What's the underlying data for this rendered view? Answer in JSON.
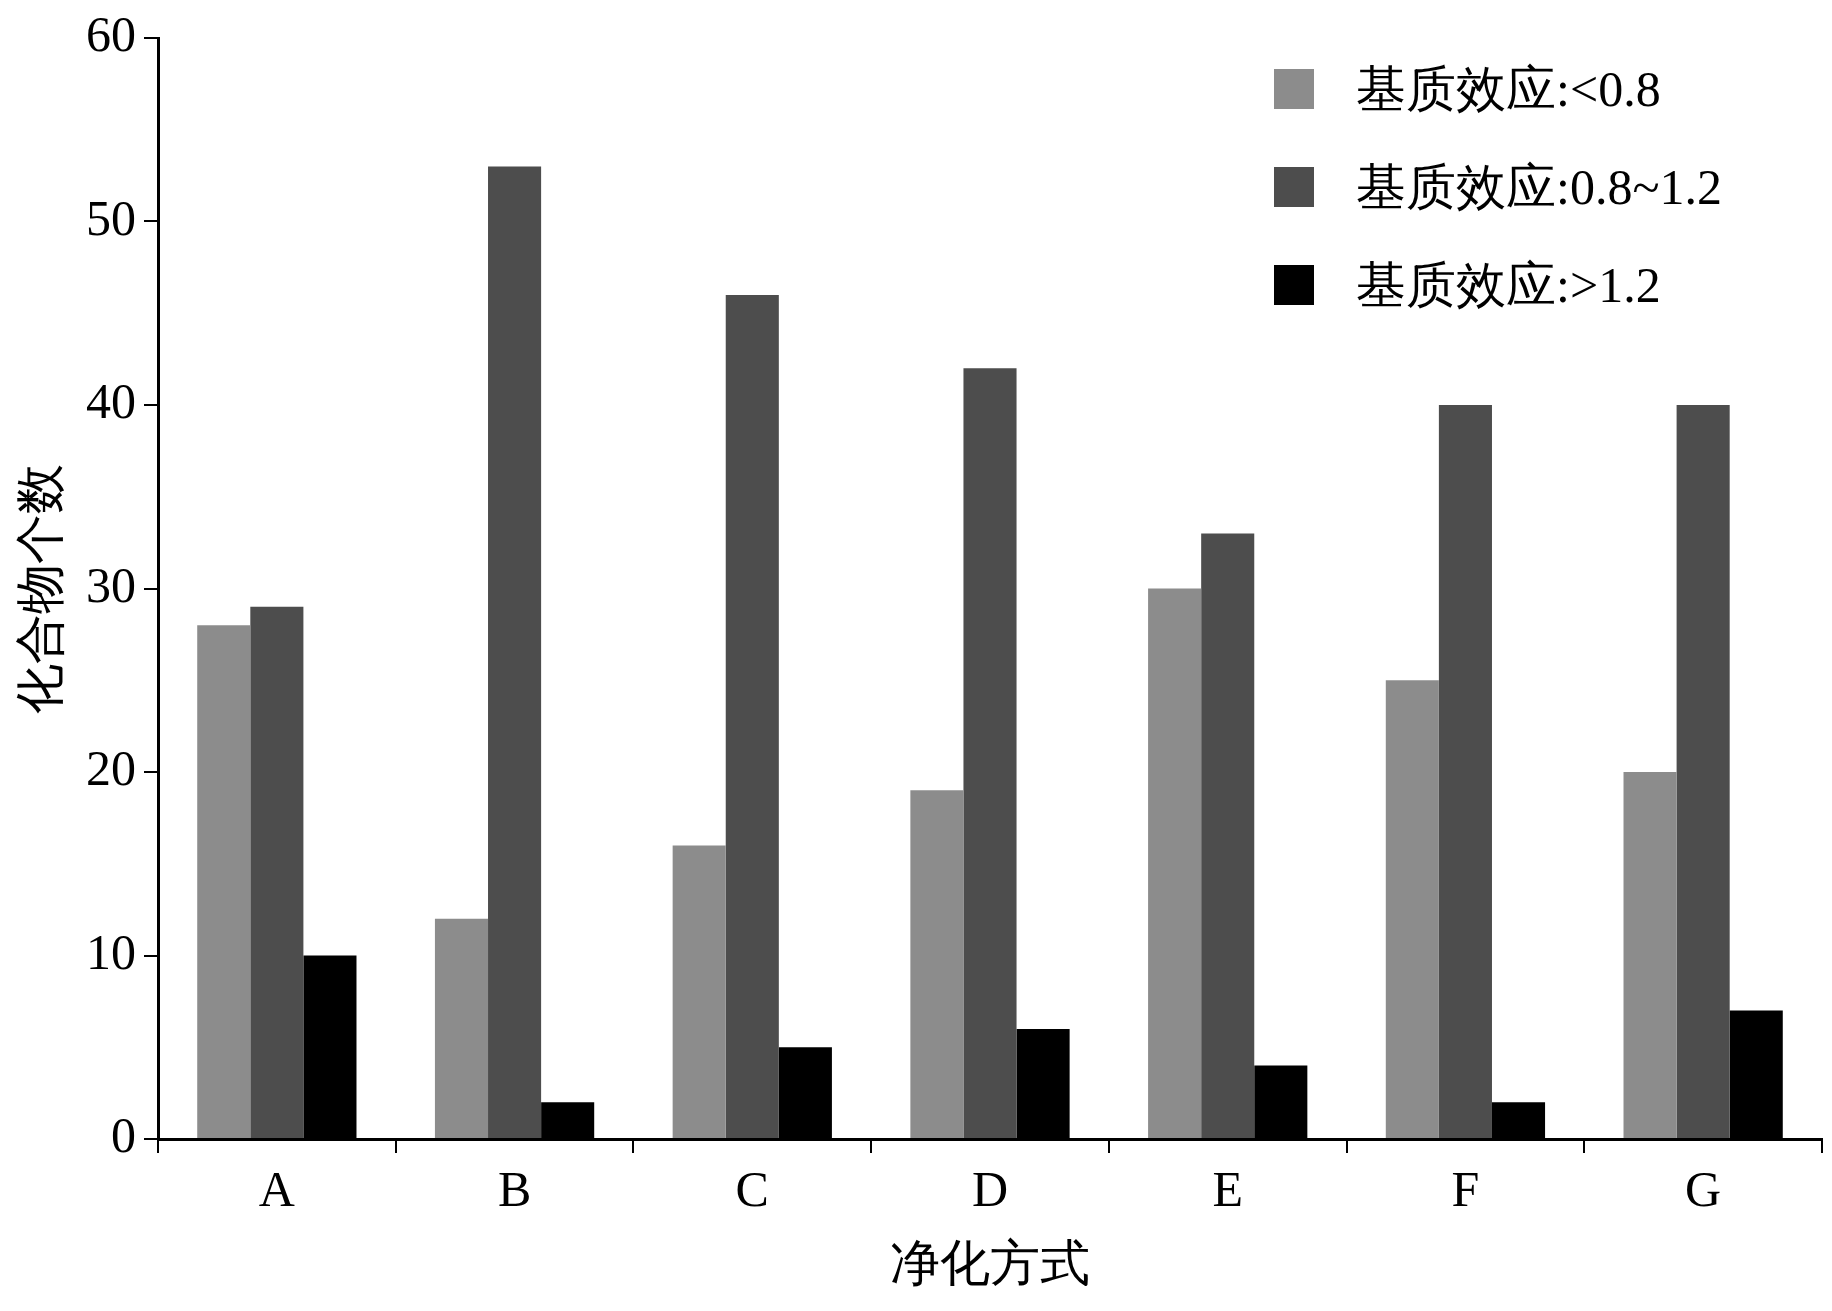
{
  "chart_data": {
    "type": "bar",
    "xlabel": "净化方式",
    "ylabel": "化合物个数",
    "categories": [
      "A",
      "B",
      "C",
      "D",
      "E",
      "F",
      "G"
    ],
    "series": [
      {
        "name": "基质效应:<0.8",
        "color": "#8c8c8c",
        "values": [
          28,
          12,
          16,
          19,
          30,
          25,
          20
        ]
      },
      {
        "name": "基质效应:0.8~1.2",
        "color": "#4d4d4d",
        "values": [
          29,
          53,
          46,
          42,
          33,
          40,
          40
        ]
      },
      {
        "name": "基质效应:>1.2",
        "color": "#000000",
        "values": [
          10,
          2,
          5,
          6,
          4,
          2,
          7
        ]
      }
    ],
    "ylim": [
      0,
      60
    ],
    "yticks": [
      0,
      10,
      20,
      30,
      40,
      50,
      60
    ],
    "grid": false,
    "legend": "top right"
  }
}
